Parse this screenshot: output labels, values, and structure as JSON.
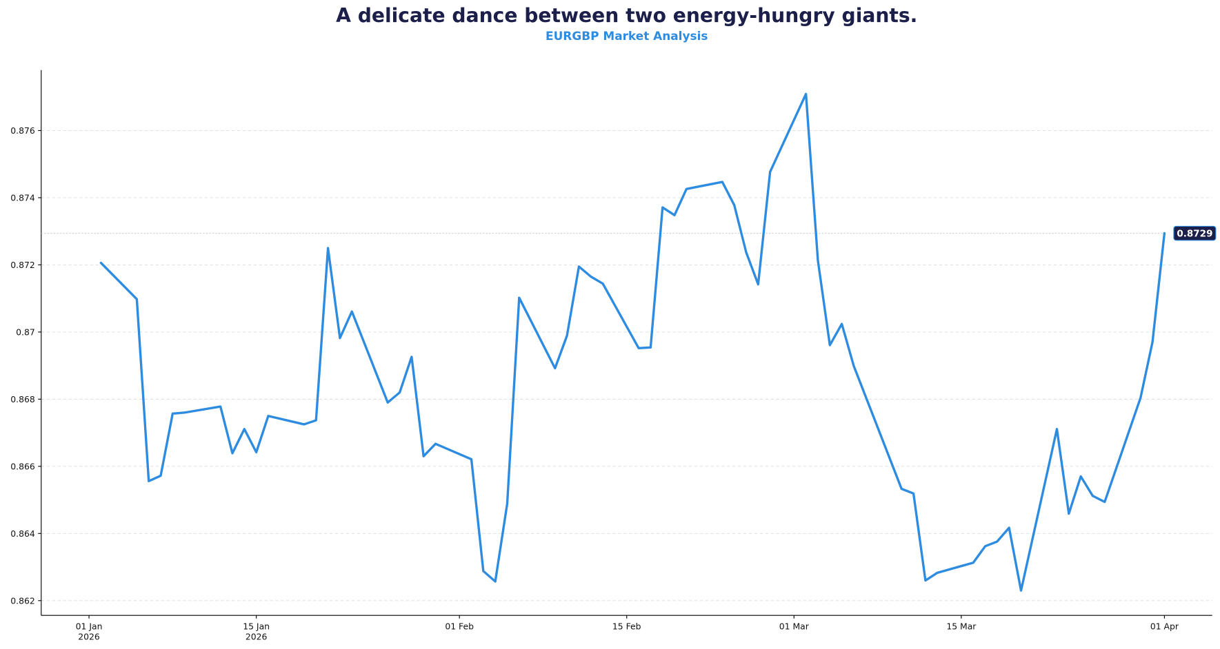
{
  "chart_data": {
    "type": "line",
    "title": "A delicate dance between two energy-hungry giants.",
    "subtitle": "EURGBP Market Analysis",
    "color": "#2e8ce0",
    "x": [
      "2026-01-02",
      "2026-01-05",
      "2026-01-06",
      "2026-01-07",
      "2026-01-08",
      "2026-01-09",
      "2026-01-12",
      "2026-01-13",
      "2026-01-14",
      "2026-01-15",
      "2026-01-16",
      "2026-01-19",
      "2026-01-20",
      "2026-01-21",
      "2026-01-22",
      "2026-01-23",
      "2026-01-26",
      "2026-01-27",
      "2026-01-28",
      "2026-01-29",
      "2026-01-30",
      "2026-02-02",
      "2026-02-03",
      "2026-02-04",
      "2026-02-05",
      "2026-02-06",
      "2026-02-09",
      "2026-02-10",
      "2026-02-11",
      "2026-02-12",
      "2026-02-13",
      "2026-02-16",
      "2026-02-17",
      "2026-02-18",
      "2026-02-19",
      "2026-02-20",
      "2026-02-23",
      "2026-02-24",
      "2026-02-25",
      "2026-02-26",
      "2026-02-27",
      "2026-03-02",
      "2026-03-03",
      "2026-03-04",
      "2026-03-05",
      "2026-03-06",
      "2026-03-10",
      "2026-03-11",
      "2026-03-12",
      "2026-03-13",
      "2026-03-16",
      "2026-03-17",
      "2026-03-18",
      "2026-03-19",
      "2026-03-20",
      "2026-03-23",
      "2026-03-24",
      "2026-03-25",
      "2026-03-26",
      "2026-03-27",
      "2026-03-30",
      "2026-03-31",
      "2026-04-01"
    ],
    "values": [
      0.87206,
      0.87098,
      0.86556,
      0.86572,
      0.86757,
      0.8676,
      0.86778,
      0.86639,
      0.86711,
      0.86642,
      0.8675,
      0.86725,
      0.86737,
      0.8725,
      0.86982,
      0.87061,
      0.8679,
      0.8682,
      0.86926,
      0.8663,
      0.86667,
      0.86621,
      0.86288,
      0.86257,
      0.86489,
      0.87102,
      0.86892,
      0.86989,
      0.87195,
      0.87165,
      0.87144,
      0.86952,
      0.86954,
      0.87371,
      0.87348,
      0.87426,
      0.87447,
      0.87378,
      0.87237,
      0.87142,
      0.87477,
      0.87709,
      0.87213,
      0.86961,
      0.87024,
      0.86899,
      0.86533,
      0.86519,
      0.8626,
      0.86283,
      0.86313,
      0.86362,
      0.86376,
      0.86417,
      0.8623,
      0.86711,
      0.86459,
      0.8657,
      0.86512,
      0.86494,
      0.86804,
      0.8697,
      0.87294
    ],
    "value_labels": [
      null,
      null,
      null,
      null,
      null,
      null,
      null,
      null,
      null,
      null,
      null,
      null,
      null,
      null,
      null,
      null,
      null,
      null,
      null,
      null,
      null,
      null,
      null,
      null,
      null,
      null,
      null,
      null,
      null,
      null,
      null,
      null,
      null,
      null,
      null,
      null,
      null,
      null,
      null,
      null,
      null,
      null,
      null,
      null,
      null,
      null,
      null,
      null,
      null,
      null,
      null,
      null,
      null,
      null,
      null,
      null,
      null,
      null,
      null,
      null,
      null,
      null,
      "0.8729"
    ],
    "xlim": [
      "2025-12-28",
      "2026-04-05"
    ],
    "xticks": [
      {
        "value": "2026-01-01",
        "label": "01 Jan\n2026"
      },
      {
        "value": "2026-01-15",
        "label": "15 Jan\n2026"
      },
      {
        "value": "2026-02-01",
        "label": "01 Feb"
      },
      {
        "value": "2026-02-15",
        "label": "15 Feb"
      },
      {
        "value": "2026-03-01",
        "label": "01 Mar"
      },
      {
        "value": "2026-03-15",
        "label": "15 Mar"
      },
      {
        "value": "2026-04-01",
        "label": "01 Apr"
      }
    ],
    "ylim": [
      0.86156,
      0.8778
    ],
    "yticks": [
      0.862,
      0.864,
      0.866,
      0.868,
      0.87,
      0.872,
      0.874,
      0.876
    ],
    "grid": true
  }
}
